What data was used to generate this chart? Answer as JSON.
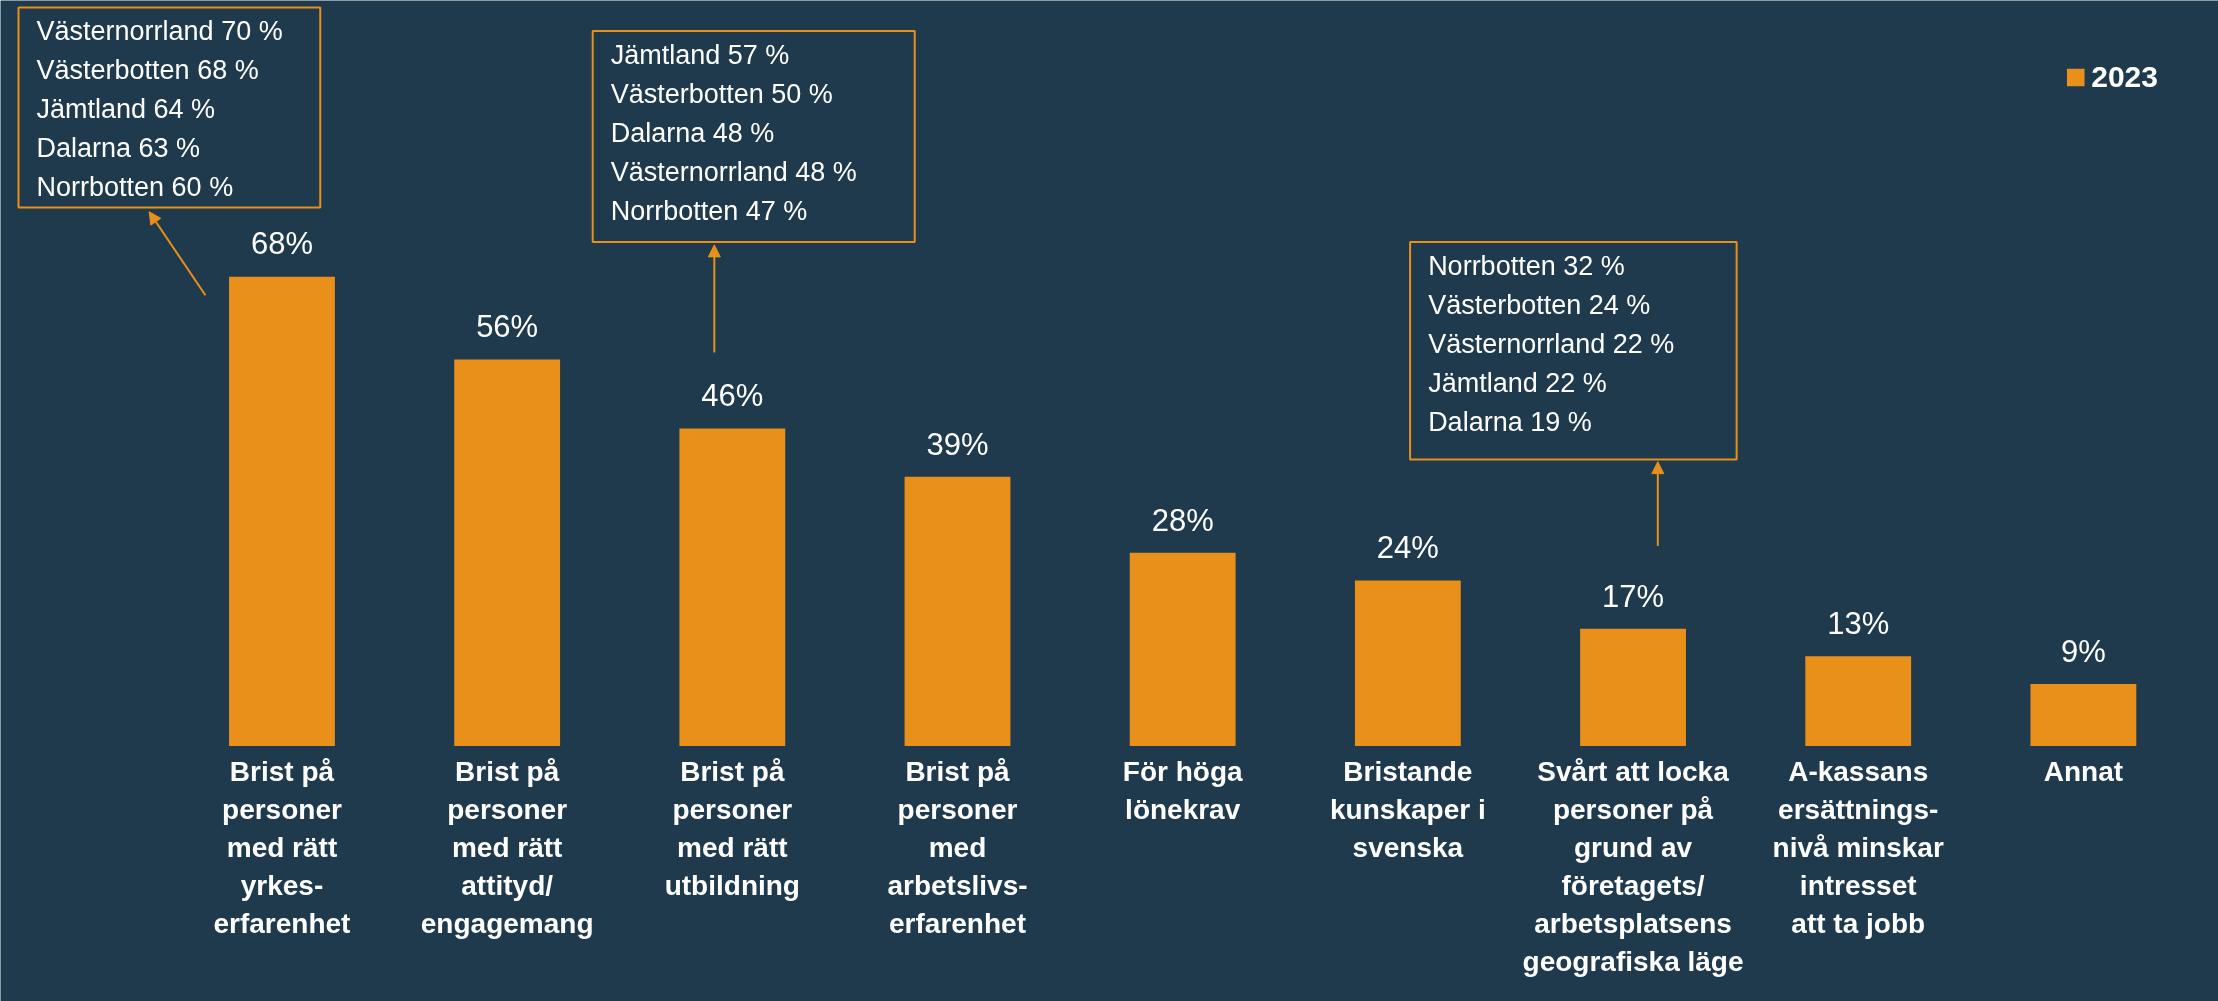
{
  "chart_data": {
    "type": "bar",
    "categories": [
      "Brist på\npersoner\nmed rätt\nyrkes-\nerfarenhet",
      "Brist på\npersoner\nmed rätt\nattityd/\nengagemang",
      "Brist på\npersoner\nmed rätt\nutbildning",
      "Brist på\npersoner\nmed\narbetslivs-\nerfarenhet",
      "För höga\nlönekrav",
      "Bristande\nkunskaper i\nsvenska",
      "Svårt att locka\npersoner på\ngrund av\nföretagets/\narbetsplatsens\ngeografiska läge",
      "A-kassans\nersättnings-\nnivå minskar\nintresset\natt ta jobb",
      "Annat"
    ],
    "series": [
      {
        "name": "2023",
        "color": "#e8901a",
        "values": [
          68,
          56,
          46,
          39,
          28,
          24,
          17,
          13,
          9
        ],
        "value_labels": [
          "68%",
          "56%",
          "46%",
          "39%",
          "28%",
          "24%",
          "17%",
          "13%",
          "9%"
        ]
      }
    ],
    "annotations": [
      "Västernorrland  70 %\nVästerbotten  68 %\nJämtland  64 %\nDalarna  63 %\nNorrbotten 60 %",
      "Jämtland 57 %\nVästerbotten 50 %\nDalarna 48 %\nVästernorrland 48 %\nNorrbotten 47 %",
      "Norrbotten 32 %\nVästerbotten 24 %\nVästernorrland 22 %\nJämtland 22 %\nDalarna 19 %"
    ],
    "legend": "top right",
    "grid": false
  }
}
